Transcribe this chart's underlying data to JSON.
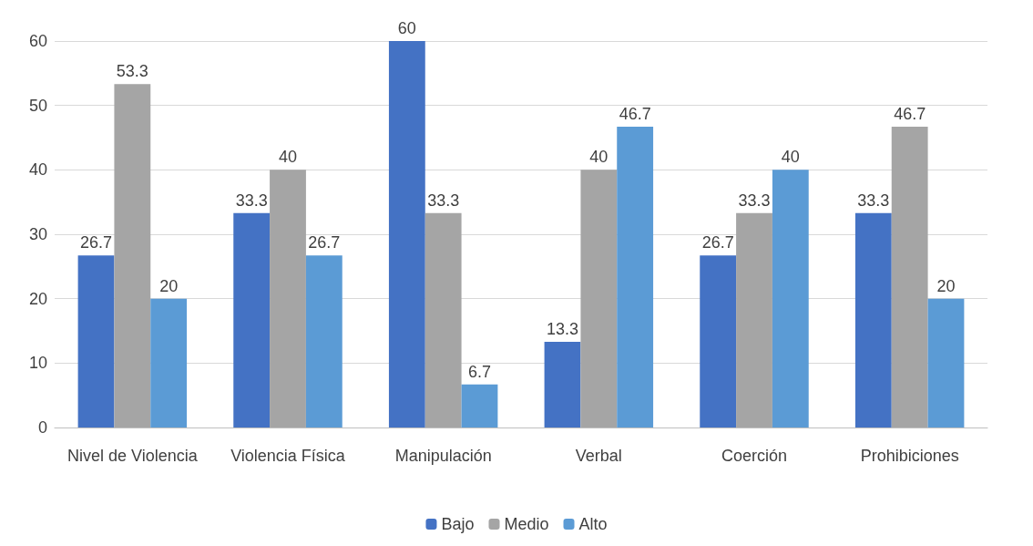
{
  "chart_data": {
    "type": "bar",
    "categories": [
      "Nivel de Violencia",
      "Violencia Física",
      "Manipulación",
      "Verbal",
      "Coerción",
      "Prohibiciones"
    ],
    "series": [
      {
        "name": "Bajo",
        "color": "#4472c4",
        "values": [
          26.7,
          33.3,
          60,
          13.3,
          26.7,
          33.3
        ]
      },
      {
        "name": "Medio",
        "color": "#a5a5a5",
        "values": [
          53.3,
          40,
          33.3,
          40,
          33.3,
          46.7
        ]
      },
      {
        "name": "Alto",
        "color": "#5b9bd5",
        "values": [
          20,
          26.7,
          6.7,
          46.7,
          40,
          20
        ]
      }
    ],
    "ylim": [
      0,
      60
    ],
    "yticks": [
      0,
      10,
      20,
      30,
      40,
      50,
      60
    ],
    "grid": "y",
    "legend": "bottom",
    "data_labels": true
  }
}
